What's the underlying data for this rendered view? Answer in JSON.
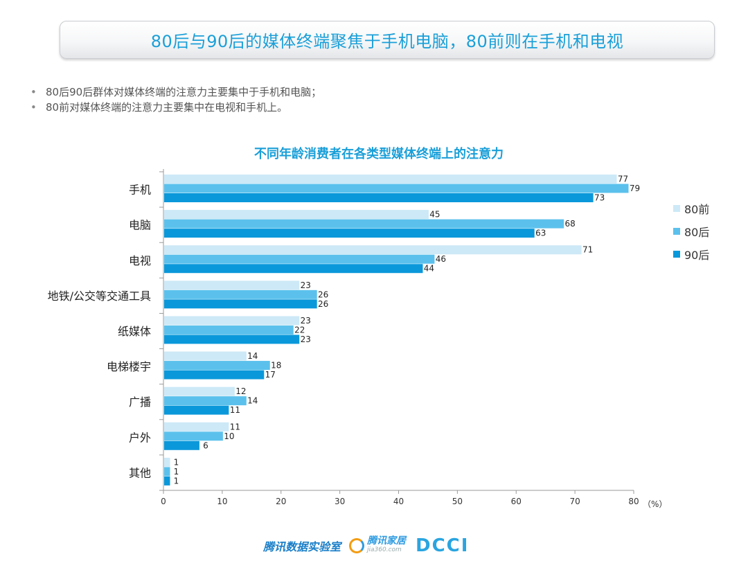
{
  "header": {
    "title": "80后与90后的媒体终端聚焦于手机电脑，80前则在手机和电视"
  },
  "bullets": [
    "80后90后群体对媒体终端的注意力主要集中于手机和电脑；",
    "80前对媒体终端的注意力主要集中在电视和手机上。"
  ],
  "footer": {
    "lab": "腾讯数据实验室",
    "jia_cn": "腾讯家居",
    "jia_en": "jia360.com",
    "dcci": "DCCI"
  },
  "chart_data": {
    "type": "bar",
    "orientation": "horizontal",
    "title": "不同年龄消费者在各类型媒体终端上的注意力",
    "unit": "（%）",
    "categories": [
      "手机",
      "电脑",
      "电视",
      "地铁/公交等交通工具",
      "纸媒体",
      "电梯楼宇",
      "广播",
      "户外",
      "其他"
    ],
    "series": [
      {
        "name": "80前",
        "color": "#cde9f7",
        "values": [
          77,
          45,
          71,
          23,
          23,
          14,
          12,
          11,
          1
        ]
      },
      {
        "name": "80后",
        "color": "#5bc1ec",
        "values": [
          79,
          68,
          46,
          26,
          22,
          18,
          14,
          10,
          1
        ]
      },
      {
        "name": "90后",
        "color": "#0a98da",
        "values": [
          73,
          63,
          44,
          26,
          23,
          17,
          11,
          6,
          1
        ]
      }
    ],
    "xlim": [
      0,
      80
    ],
    "xticks": [
      0,
      10,
      20,
      30,
      40,
      50,
      60,
      70,
      80
    ],
    "legend": "right",
    "grid": false
  }
}
